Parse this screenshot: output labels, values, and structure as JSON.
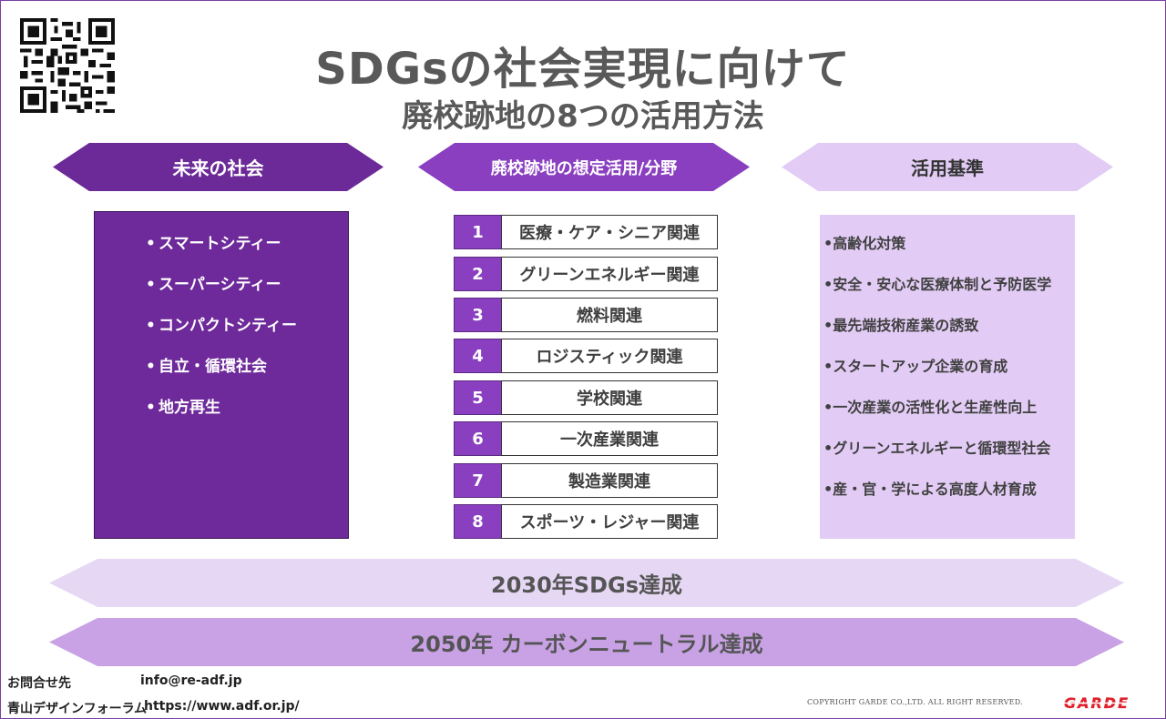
{
  "title": {
    "line1": "SDGsの社会実現に向けて",
    "line2": "廃校跡地の8つの活用方法"
  },
  "headers": {
    "left": "未来の社会",
    "middle": "廃校跡地の想定活用/分野",
    "right": "活用基準"
  },
  "future_society": [
    "スマートシティー",
    "スーパーシティー",
    "コンパクトシティー",
    "自立・循環社会",
    "地方再生"
  ],
  "uses": [
    {
      "num": "1",
      "label": "医療・ケア・シニア関連"
    },
    {
      "num": "2",
      "label": "グリーンエネルギー関連"
    },
    {
      "num": "3",
      "label": "燃料関連"
    },
    {
      "num": "4",
      "label": "ロジスティック関連"
    },
    {
      "num": "5",
      "label": "学校関連"
    },
    {
      "num": "6",
      "label": "一次産業関連"
    },
    {
      "num": "7",
      "label": "製造業関連"
    },
    {
      "num": "8",
      "label": "スポーツ・レジャー関連"
    }
  ],
  "criteria": [
    "•高齢化対策",
    "•安全・安心な医療体制と予防医学",
    "•最先端技術産業の誘致",
    "•スタートアップ企業の育成",
    "•一次産業の活性化と生産性向上",
    "•グリーンエネルギーと循環型社会",
    "•産・官・学による高度人材育成"
  ],
  "banners": {
    "goal_2030": "2030年SDGs達成",
    "goal_2050": "2050年 カーボンニュートラル達成"
  },
  "footer": {
    "contact_label": "お問合せ先",
    "email": "info@re-adf.jp",
    "org": "青山デザインフォーラム",
    "url": "https://www.adf.or.jp/",
    "copyright": "COPYRIGHT GARDE CO.,LTD. ALL RIGHT RESERVED.",
    "brand": "GARDE"
  },
  "colors": {
    "dark_purple": "#6b2a98",
    "purple": "#8a3fc1",
    "light_lavender": "#e2ccf5",
    "banner_light": "#e6d8f4",
    "banner_mid": "#c9a2e6",
    "brand_red": "#e0202a"
  }
}
